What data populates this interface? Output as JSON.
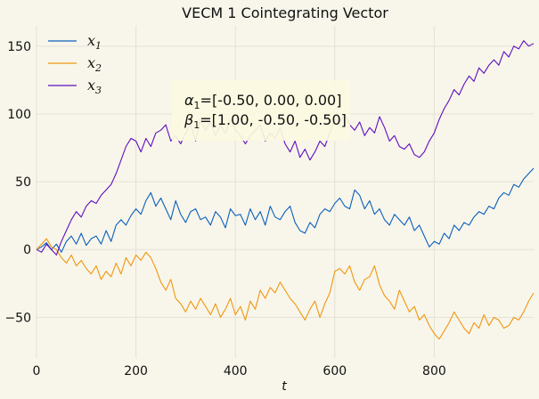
{
  "chart_data": {
    "type": "line",
    "title": "VECM 1 Cointegrating Vector",
    "xlabel": "t",
    "ylabel": "",
    "xlim": [
      0,
      1000
    ],
    "ylim": [
      -80,
      165
    ],
    "xticks": [
      0,
      200,
      400,
      600,
      800
    ],
    "yticks": [
      -50,
      0,
      50,
      100,
      150
    ],
    "grid": true,
    "legend_placement": "top-left",
    "annotation": {
      "line1_sym": "α",
      "line1_sub": "1",
      "line1_val": "=[-0.50, 0.00, 0.00]",
      "line2_sym": "β",
      "line2_sub": "1",
      "line2_val": "=[1.00, -0.50, -0.50]"
    },
    "series": [
      {
        "name": "x",
        "subscript": "1",
        "color": "#0a5fbe",
        "x": [
          0,
          10,
          20,
          30,
          40,
          50,
          60,
          70,
          80,
          90,
          100,
          110,
          120,
          130,
          140,
          150,
          160,
          170,
          180,
          190,
          200,
          210,
          220,
          230,
          240,
          250,
          260,
          270,
          280,
          290,
          300,
          310,
          320,
          330,
          340,
          350,
          360,
          370,
          380,
          390,
          400,
          410,
          420,
          430,
          440,
          450,
          460,
          470,
          480,
          490,
          500,
          510,
          520,
          530,
          540,
          550,
          560,
          570,
          580,
          590,
          600,
          610,
          620,
          630,
          640,
          650,
          660,
          670,
          680,
          690,
          700,
          710,
          720,
          730,
          740,
          750,
          760,
          770,
          780,
          790,
          800,
          810,
          820,
          830,
          840,
          850,
          860,
          870,
          880,
          890,
          900,
          910,
          920,
          930,
          940,
          950,
          960,
          970,
          980,
          990,
          1000
        ],
        "values": [
          0,
          2,
          5,
          0,
          4,
          -2,
          6,
          10,
          4,
          12,
          3,
          8,
          10,
          4,
          14,
          6,
          18,
          22,
          18,
          25,
          30,
          26,
          36,
          42,
          32,
          38,
          30,
          22,
          36,
          26,
          20,
          28,
          30,
          22,
          24,
          18,
          28,
          24,
          16,
          30,
          25,
          26,
          18,
          30,
          22,
          28,
          18,
          32,
          24,
          22,
          28,
          32,
          20,
          14,
          12,
          20,
          16,
          26,
          30,
          28,
          34,
          38,
          32,
          30,
          44,
          40,
          30,
          36,
          26,
          30,
          22,
          18,
          26,
          22,
          18,
          24,
          14,
          18,
          10,
          2,
          6,
          4,
          12,
          8,
          18,
          14,
          20,
          18,
          24,
          28,
          26,
          32,
          30,
          38,
          42,
          40,
          48,
          46,
          52,
          56,
          60
        ]
      },
      {
        "name": "x",
        "subscript": "2",
        "color": "#f0960f",
        "x": [
          0,
          10,
          20,
          30,
          40,
          50,
          60,
          70,
          80,
          90,
          100,
          110,
          120,
          130,
          140,
          150,
          160,
          170,
          180,
          190,
          200,
          210,
          220,
          230,
          240,
          250,
          260,
          270,
          280,
          290,
          300,
          310,
          320,
          330,
          340,
          350,
          360,
          370,
          380,
          390,
          400,
          410,
          420,
          430,
          440,
          450,
          460,
          470,
          480,
          490,
          500,
          510,
          520,
          530,
          540,
          550,
          560,
          570,
          580,
          590,
          600,
          610,
          620,
          630,
          640,
          650,
          660,
          670,
          680,
          690,
          700,
          710,
          720,
          730,
          740,
          750,
          760,
          770,
          780,
          790,
          800,
          810,
          820,
          830,
          840,
          850,
          860,
          870,
          880,
          890,
          900,
          910,
          920,
          930,
          940,
          950,
          960,
          970,
          980,
          990,
          1000
        ],
        "values": [
          0,
          4,
          8,
          2,
          0,
          -6,
          -10,
          -4,
          -12,
          -8,
          -14,
          -18,
          -12,
          -22,
          -16,
          -20,
          -10,
          -18,
          -6,
          -12,
          -4,
          -8,
          -2,
          -6,
          -14,
          -24,
          -30,
          -22,
          -36,
          -40,
          -46,
          -38,
          -44,
          -36,
          -42,
          -48,
          -40,
          -50,
          -44,
          -36,
          -48,
          -42,
          -52,
          -38,
          -44,
          -30,
          -36,
          -28,
          -32,
          -24,
          -30,
          -36,
          -40,
          -46,
          -52,
          -44,
          -38,
          -50,
          -40,
          -32,
          -16,
          -14,
          -18,
          -12,
          -24,
          -30,
          -22,
          -20,
          -12,
          -26,
          -34,
          -38,
          -44,
          -30,
          -38,
          -46,
          -42,
          -52,
          -48,
          -56,
          -62,
          -66,
          -60,
          -54,
          -46,
          -52,
          -58,
          -62,
          -54,
          -58,
          -48,
          -56,
          -50,
          -52,
          -58,
          -56,
          -50,
          -52,
          -46,
          -38,
          -32
        ]
      },
      {
        "name": "x",
        "subscript": "3",
        "color": "#5e0fc0",
        "x": [
          0,
          10,
          20,
          30,
          40,
          50,
          60,
          70,
          80,
          90,
          100,
          110,
          120,
          130,
          140,
          150,
          160,
          170,
          180,
          190,
          200,
          210,
          220,
          230,
          240,
          250,
          260,
          270,
          280,
          290,
          300,
          310,
          320,
          330,
          340,
          350,
          360,
          370,
          380,
          390,
          400,
          410,
          420,
          430,
          440,
          450,
          460,
          470,
          480,
          490,
          500,
          510,
          520,
          530,
          540,
          550,
          560,
          570,
          580,
          590,
          600,
          610,
          620,
          630,
          640,
          650,
          660,
          670,
          680,
          690,
          700,
          710,
          720,
          730,
          740,
          750,
          760,
          770,
          780,
          790,
          800,
          810,
          820,
          830,
          840,
          850,
          860,
          870,
          880,
          890,
          900,
          910,
          920,
          930,
          940,
          950,
          960,
          970,
          980,
          990,
          1000
        ],
        "values": [
          0,
          -2,
          4,
          0,
          -4,
          6,
          14,
          22,
          28,
          24,
          32,
          36,
          34,
          40,
          44,
          48,
          56,
          66,
          76,
          82,
          80,
          72,
          82,
          76,
          86,
          88,
          92,
          80,
          84,
          78,
          86,
          92,
          80,
          96,
          88,
          94,
          84,
          92,
          86,
          96,
          88,
          84,
          78,
          84,
          88,
          92,
          80,
          86,
          82,
          90,
          78,
          72,
          80,
          68,
          74,
          66,
          72,
          80,
          76,
          86,
          96,
          94,
          100,
          92,
          88,
          94,
          84,
          90,
          86,
          98,
          90,
          80,
          84,
          76,
          74,
          78,
          70,
          68,
          72,
          80,
          86,
          96,
          104,
          110,
          118,
          114,
          122,
          128,
          124,
          134,
          130,
          136,
          140,
          136,
          146,
          142,
          150,
          148,
          154,
          150,
          152
        ]
      }
    ]
  }
}
